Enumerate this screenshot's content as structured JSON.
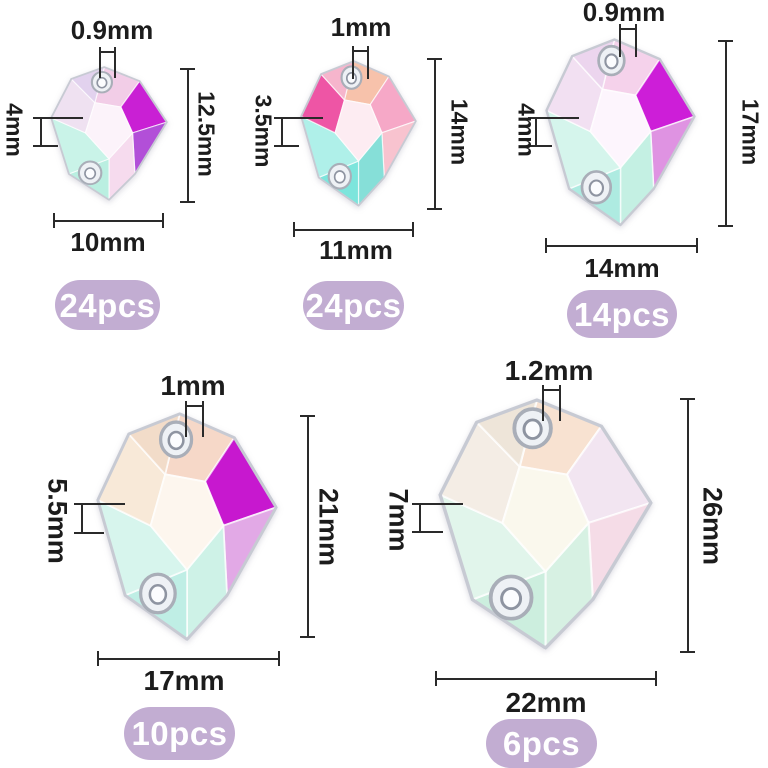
{
  "colors": {
    "line": "#2a2a2a",
    "label_text": "#1c1c1c",
    "badge_bg": "#c2add2",
    "badge_text": "#ffffff",
    "flash_magenta": "#c81fd4"
  },
  "items": [
    {
      "hole": "0.9mm",
      "side": "4mm",
      "height": "12.5mm",
      "width": "10mm",
      "count": "24pcs",
      "palette": [
        "#f2cde7",
        "#c920d4",
        "#b24fd8",
        "#f6dbee",
        "#baefe1",
        "#c9f3e8",
        "#efe1f1",
        "#e2d2ee",
        "#fcf3fa"
      ]
    },
    {
      "hole": "1mm",
      "side": "3.5mm",
      "height": "14mm",
      "width": "11mm",
      "count": "24pcs",
      "palette": [
        "#f7c2ab",
        "#f6a8c7",
        "#f8c3cf",
        "#86dfd8",
        "#7de5dc",
        "#aff0e9",
        "#ee55a5",
        "#f6b5cc",
        "#fdecf2"
      ]
    },
    {
      "hole": "0.9mm",
      "side": "4mm",
      "height": "17mm",
      "width": "14mm",
      "count": "14pcs",
      "palette": [
        "#f5d2eb",
        "#cd1ed8",
        "#df93e2",
        "#c4f0e3",
        "#aeebe1",
        "#d5f5ec",
        "#f2e0f2",
        "#ecd5ee",
        "#fdf5fd"
      ]
    },
    {
      "hole": "1mm",
      "side": "5.5mm",
      "height": "21mm",
      "width": "17mm",
      "count": "10pcs",
      "palette": [
        "#f6d8c8",
        "#c718cf",
        "#e2a9e6",
        "#cef2e7",
        "#bfeee5",
        "#d7f5ed",
        "#f8e9d8",
        "#f2dcc9",
        "#fdf6ee"
      ]
    },
    {
      "hole": "1.2mm",
      "side": "7mm",
      "height": "26mm",
      "width": "22mm",
      "count": "6pcs",
      "palette": [
        "#f8e2d1",
        "#f2e5f1",
        "#f5dce7",
        "#d7f1e3",
        "#cceede",
        "#e1f5eb",
        "#f4ede5",
        "#eee5d9",
        "#faf8ed"
      ]
    }
  ]
}
